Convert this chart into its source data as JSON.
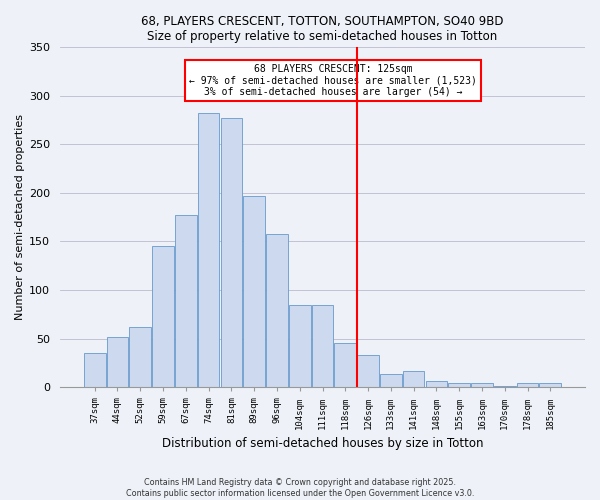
{
  "title": "68, PLAYERS CRESCENT, TOTTON, SOUTHAMPTON, SO40 9BD",
  "subtitle": "Size of property relative to semi-detached houses in Totton",
  "xlabel": "Distribution of semi-detached houses by size in Totton",
  "ylabel": "Number of semi-detached properties",
  "bin_labels": [
    "37sqm",
    "44sqm",
    "52sqm",
    "59sqm",
    "67sqm",
    "74sqm",
    "81sqm",
    "89sqm",
    "96sqm",
    "104sqm",
    "111sqm",
    "118sqm",
    "126sqm",
    "133sqm",
    "141sqm",
    "148sqm",
    "155sqm",
    "163sqm",
    "170sqm",
    "178sqm",
    "185sqm"
  ],
  "bar_heights": [
    35,
    52,
    62,
    145,
    177,
    282,
    277,
    197,
    158,
    85,
    85,
    46,
    33,
    14,
    17,
    7,
    5,
    4,
    1,
    5,
    5
  ],
  "bar_color": "#ccd9ee",
  "bar_edge_color": "#6699cc",
  "vline_color": "red",
  "vline_index": 12,
  "annotation_title": "68 PLAYERS CRESCENT: 125sqm",
  "annotation_line1": "← 97% of semi-detached houses are smaller (1,523)",
  "annotation_line2": "3% of semi-detached houses are larger (54) →",
  "annotation_box_color": "red",
  "ylim": [
    0,
    350
  ],
  "yticks": [
    0,
    50,
    100,
    150,
    200,
    250,
    300,
    350
  ],
  "footer_line1": "Contains HM Land Registry data © Crown copyright and database right 2025.",
  "footer_line2": "Contains public sector information licensed under the Open Government Licence v3.0.",
  "bg_color": "#eef2f8"
}
